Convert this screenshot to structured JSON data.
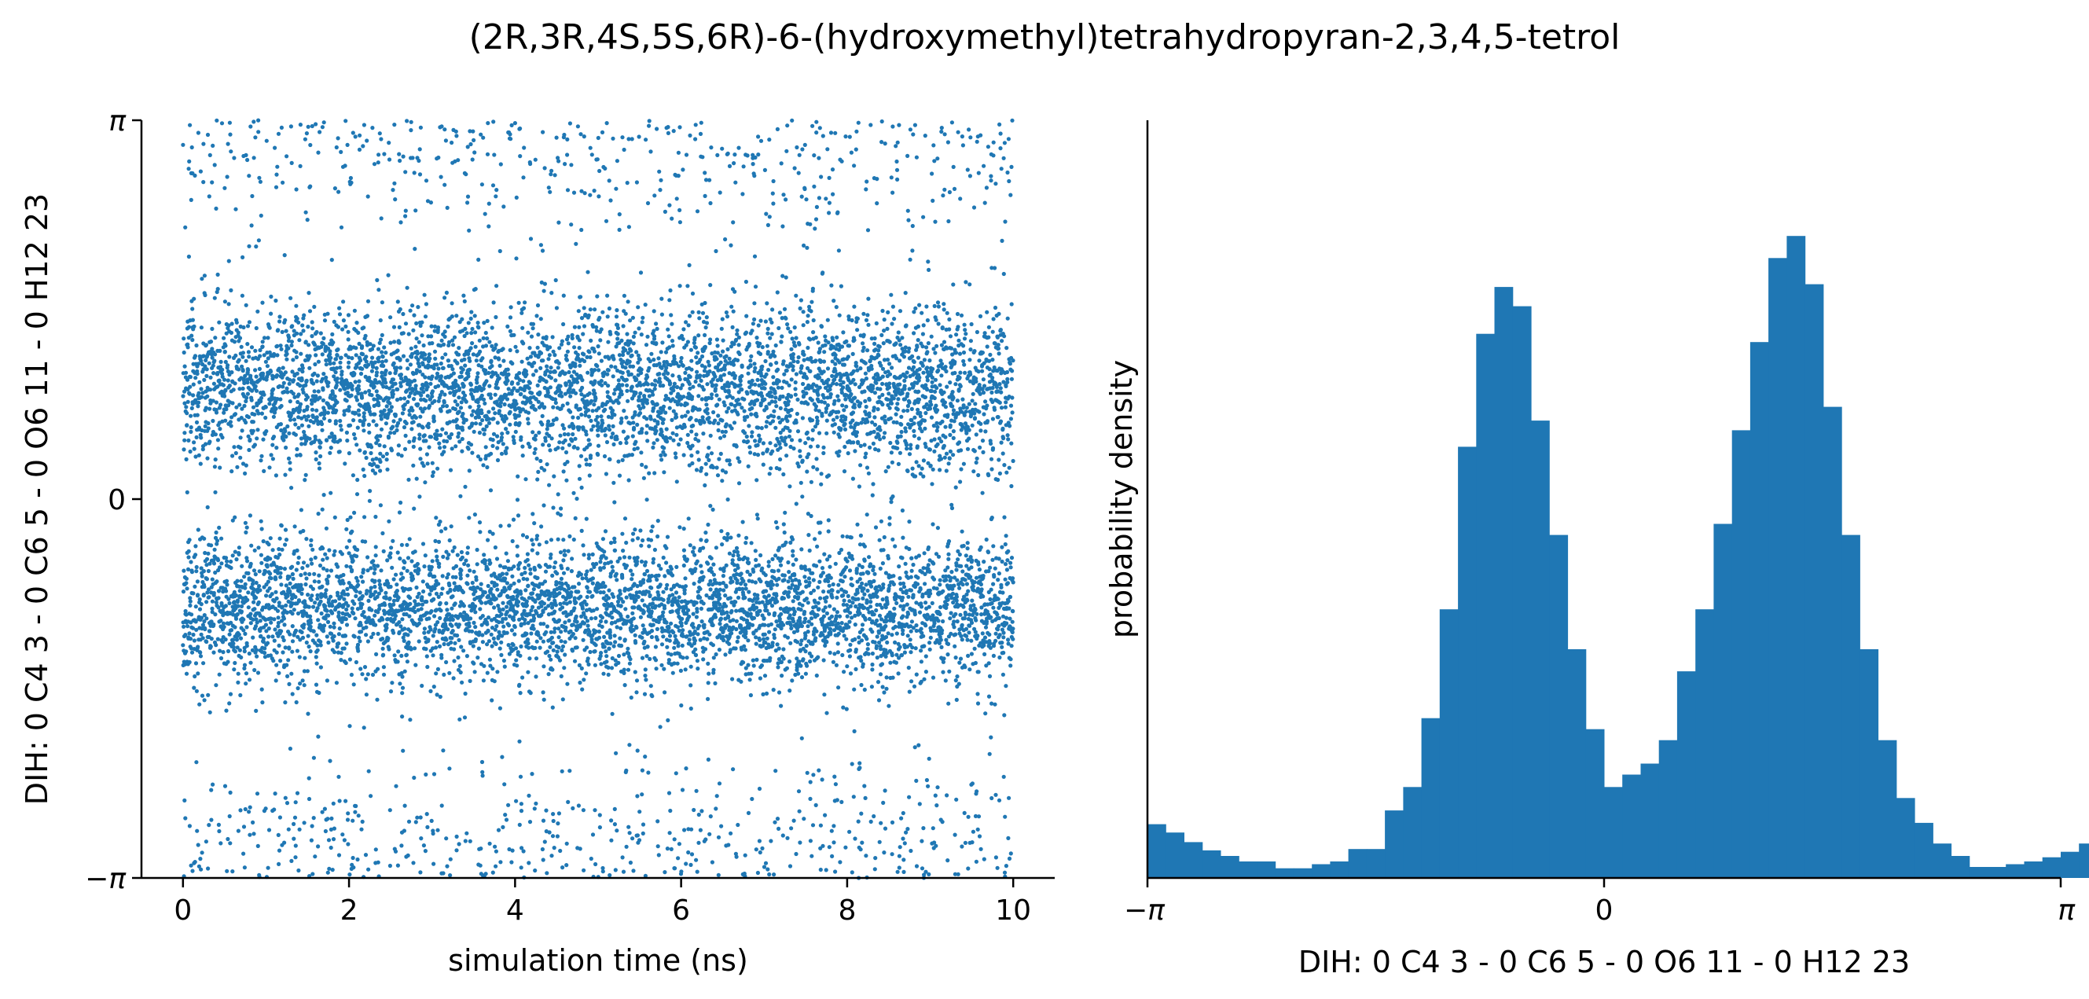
{
  "figure": {
    "title": "(2R,3R,4S,5S,6R)-6-(hydroxymethyl)tetrahydropyran-2,3,4,5-tetrol"
  },
  "colors": {
    "series": "#1f77b4",
    "axis": "#000000"
  },
  "chart_data": [
    {
      "type": "scatter",
      "xlabel": "simulation time (ns)",
      "ylabel": "DIH:  0 C4 3 -  0 C6 5 -  0 O6 11 -  0 H12 23",
      "xlim": [
        -0.5,
        10.5
      ],
      "ylim": [
        -3.14159,
        3.14159
      ],
      "xticks": [
        0,
        2,
        4,
        6,
        8,
        10
      ],
      "xtick_labels": [
        "0",
        "2",
        "4",
        "6",
        "8",
        "10"
      ],
      "yticks": [
        -3.14159,
        0,
        3.14159
      ],
      "ytick_labels": [
        "−π",
        "0",
        "π"
      ],
      "grid": false,
      "n_points": 10000,
      "x_range": [
        0,
        10
      ],
      "clusters": [
        {
          "center": 0.9,
          "spread": 0.35,
          "weight": 0.45
        },
        {
          "center": -0.9,
          "spread": 0.3,
          "weight": 0.45
        },
        {
          "center": 3.14159,
          "spread": 0.5,
          "weight": 0.1
        }
      ]
    },
    {
      "type": "bar",
      "xlabel": "DIH:  0 C4 3 -  0 C6 5 -  0 O6 11 -  0 H12 23",
      "ylabel": "probability density",
      "xlim": [
        -3.14159,
        3.14159
      ],
      "xticks": [
        -3.14159,
        0,
        3.14159
      ],
      "xtick_labels": [
        "−π",
        "0",
        "π"
      ],
      "ylim": [
        0,
        0.55
      ],
      "grid": false,
      "bin_edges_start": -3.14159,
      "bin_width": 0.12566,
      "values": [
        0.039,
        0.033,
        0.026,
        0.02,
        0.016,
        0.012,
        0.012,
        0.007,
        0.007,
        0.01,
        0.012,
        0.021,
        0.021,
        0.049,
        0.066,
        0.116,
        0.195,
        0.313,
        0.395,
        0.429,
        0.415,
        0.332,
        0.249,
        0.166,
        0.108,
        0.066,
        0.075,
        0.083,
        0.1,
        0.15,
        0.195,
        0.257,
        0.325,
        0.389,
        0.45,
        0.466,
        0.431,
        0.342,
        0.249,
        0.166,
        0.1,
        0.058,
        0.04,
        0.025,
        0.016,
        0.008,
        0.008,
        0.01,
        0.012,
        0.015,
        0.019,
        0.025
      ]
    }
  ]
}
